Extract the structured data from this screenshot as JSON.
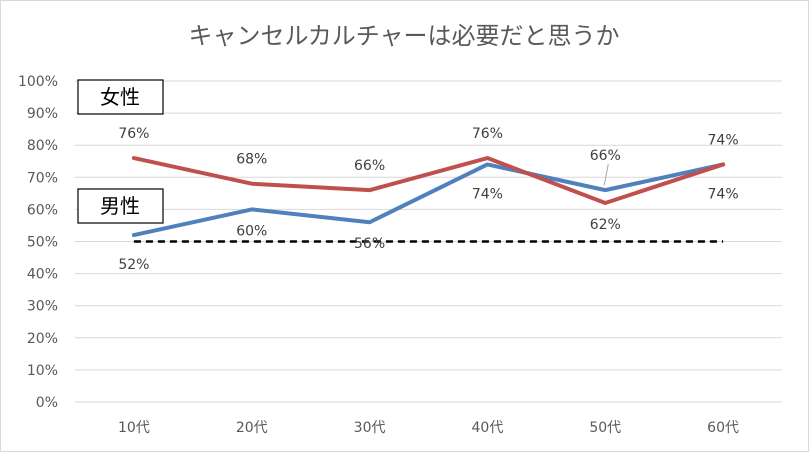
{
  "chart_data": {
    "type": "line",
    "title": "キャンセルカルチャーは必要だと思うか",
    "categories": [
      "10代",
      "20代",
      "30代",
      "40代",
      "50代",
      "60代"
    ],
    "ylim": [
      0,
      100
    ],
    "y_ticks": [
      "0%",
      "10%",
      "20%",
      "30%",
      "40%",
      "50%",
      "60%",
      "70%",
      "80%",
      "90%",
      "100%"
    ],
    "grid": true,
    "series": [
      {
        "name": "女性",
        "color": "#c0504d",
        "values": [
          76,
          68,
          66,
          76,
          62,
          74
        ],
        "labels": [
          "76%",
          "68%",
          "66%",
          "76%",
          "62%",
          "74%"
        ]
      },
      {
        "name": "男性",
        "color": "#4f81bd",
        "values": [
          52,
          60,
          56,
          74,
          66,
          74
        ],
        "labels": [
          "52%",
          "60%",
          "56%",
          "74%",
          "66%",
          "74%"
        ]
      }
    ],
    "reference_line": {
      "value": 50,
      "style": "dashed",
      "color": "#000000"
    }
  }
}
